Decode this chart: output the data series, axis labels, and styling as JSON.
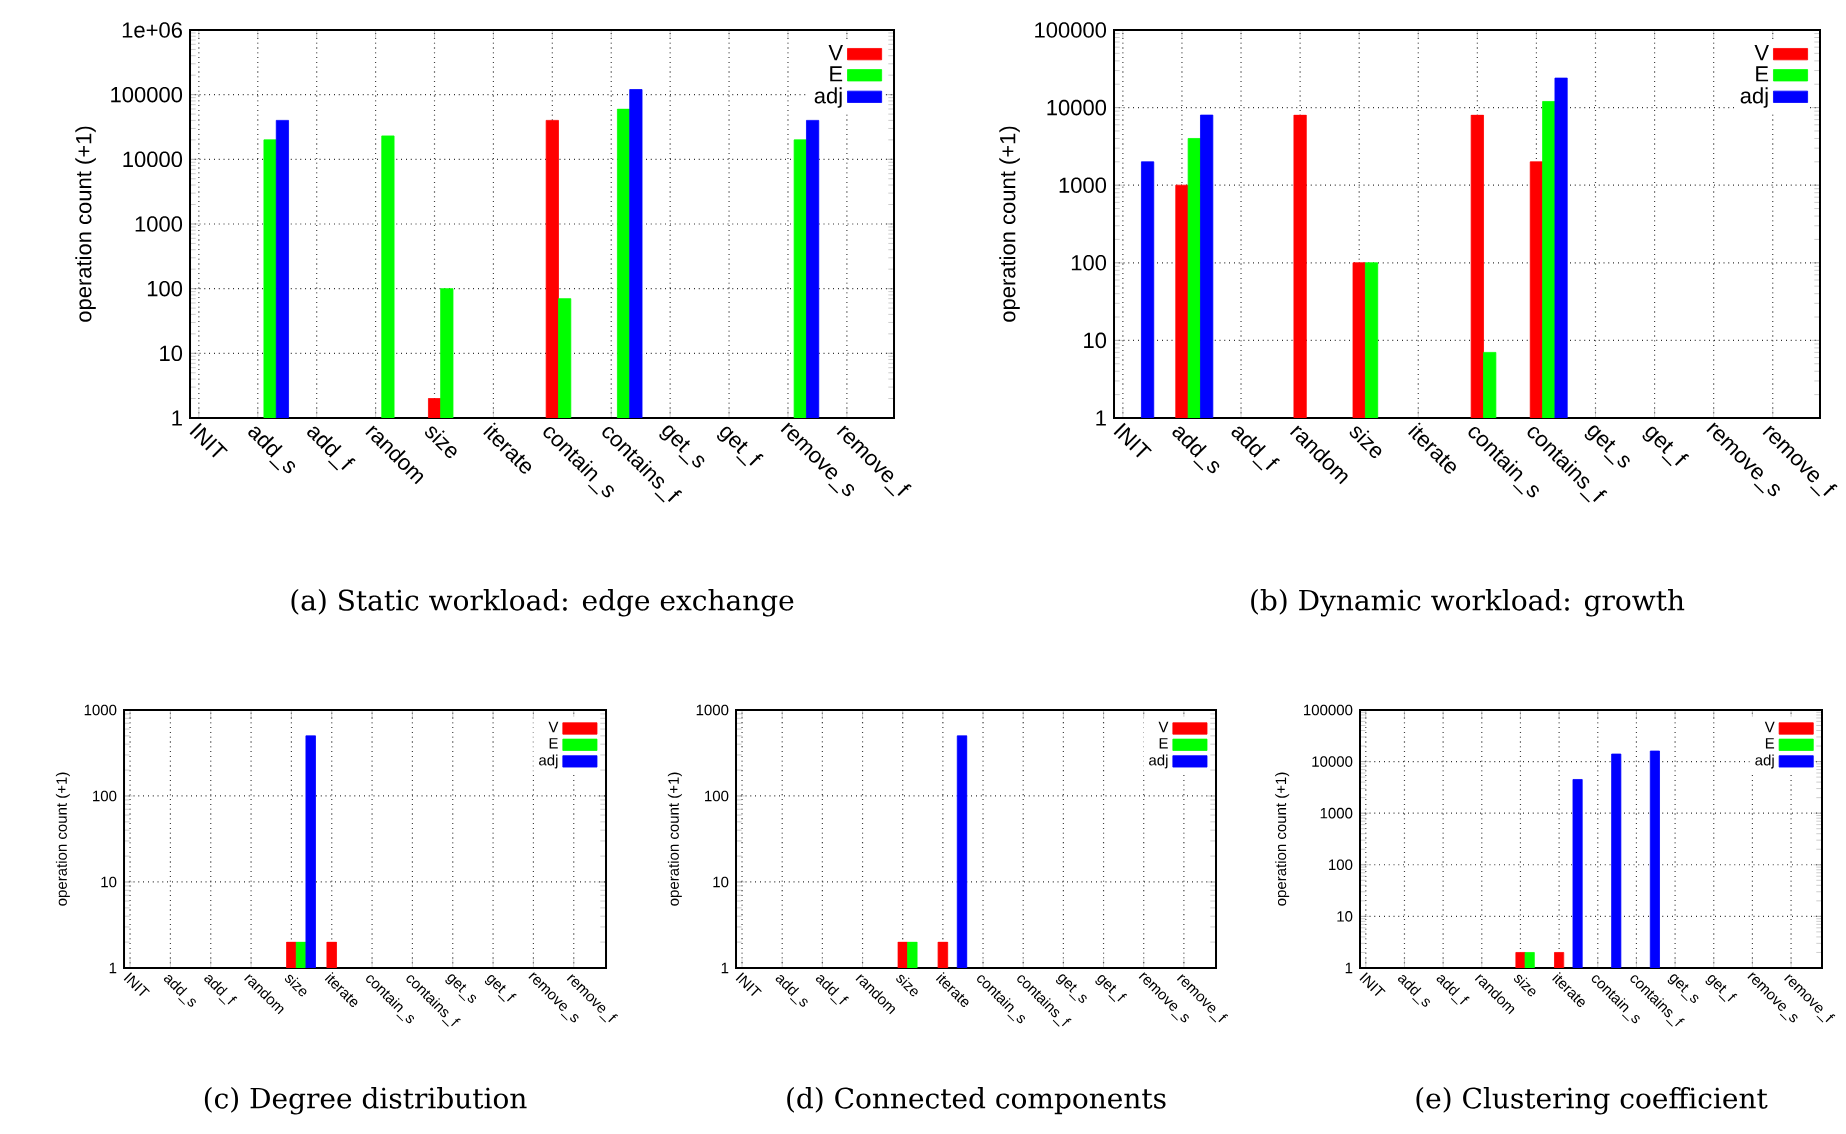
{
  "chart_data": [
    {
      "type": "bar",
      "title": "(a) Static workload: edge exchange",
      "ylabel": "operation count (+1)",
      "categories": [
        "INIT",
        "add_s",
        "add_f",
        "random",
        "size",
        "iterate",
        "contain_s",
        "contains_f",
        "get_s",
        "get_f",
        "remove_s",
        "remove_f"
      ],
      "series": [
        {
          "name": "V",
          "color": "#ff0000",
          "values": [
            null,
            null,
            null,
            null,
            2,
            null,
            40000,
            null,
            null,
            null,
            null,
            null
          ]
        },
        {
          "name": "E",
          "color": "#00ff00",
          "values": [
            null,
            20000,
            null,
            23000,
            100,
            null,
            70,
            60000,
            null,
            null,
            20000,
            null
          ]
        },
        {
          "name": "adj",
          "color": "#0000ff",
          "values": [
            null,
            40000,
            null,
            null,
            null,
            null,
            null,
            120000,
            null,
            null,
            40000,
            null
          ]
        }
      ],
      "ylim": [
        1,
        1000000
      ],
      "yticks": [
        1,
        10,
        100,
        1000,
        10000,
        100000,
        {
          "value": 1000000,
          "label": "1e+06"
        }
      ],
      "log": "y",
      "grid": true,
      "legend": "top right"
    },
    {
      "type": "bar",
      "title": "(b) Dynamic workload: growth",
      "ylabel": "operation count (+1)",
      "categories": [
        "INIT",
        "add_s",
        "add_f",
        "random",
        "size",
        "iterate",
        "contain_s",
        "contains_f",
        "get_s",
        "get_f",
        "remove_s",
        "remove_f"
      ],
      "series": [
        {
          "name": "V",
          "color": "#ff0000",
          "values": [
            null,
            1000,
            null,
            8000,
            100,
            null,
            8000,
            2000,
            null,
            null,
            null,
            null
          ]
        },
        {
          "name": "E",
          "color": "#00ff00",
          "values": [
            null,
            4000,
            null,
            null,
            100,
            null,
            7,
            12000,
            null,
            null,
            null,
            null
          ]
        },
        {
          "name": "adj",
          "color": "#0000ff",
          "values": [
            2000,
            8000,
            null,
            null,
            null,
            null,
            null,
            24000,
            null,
            null,
            null,
            null
          ]
        }
      ],
      "ylim": [
        1,
        100000
      ],
      "yticks": [
        1,
        10,
        100,
        1000,
        10000,
        100000
      ],
      "log": "y",
      "grid": true,
      "legend": "top right"
    },
    {
      "type": "bar",
      "title": "(c) Degree distribution",
      "ylabel": "operation count (+1)",
      "categories": [
        "INIT",
        "add_s",
        "add_f",
        "random",
        "size",
        "iterate",
        "contain_s",
        "contains_f",
        "get_s",
        "get_f",
        "remove_s",
        "remove_f"
      ],
      "series": [
        {
          "name": "V",
          "color": "#ff0000",
          "values": [
            null,
            null,
            null,
            null,
            2,
            2,
            null,
            null,
            null,
            null,
            null,
            null
          ]
        },
        {
          "name": "E",
          "color": "#00ff00",
          "values": [
            null,
            null,
            null,
            null,
            2,
            null,
            null,
            null,
            null,
            null,
            null,
            null
          ]
        },
        {
          "name": "adj",
          "color": "#0000ff",
          "values": [
            null,
            null,
            null,
            null,
            500,
            null,
            null,
            null,
            null,
            null,
            null,
            null
          ]
        }
      ],
      "ylim": [
        1,
        1000
      ],
      "yticks": [
        1,
        10,
        100,
        1000
      ],
      "log": "y",
      "grid": true,
      "legend": "top right"
    },
    {
      "type": "bar",
      "title": "(d) Connected components",
      "ylabel": "operation count (+1)",
      "categories": [
        "INIT",
        "add_s",
        "add_f",
        "random",
        "size",
        "iterate",
        "contain_s",
        "contains_f",
        "get_s",
        "get_f",
        "remove_s",
        "remove_f"
      ],
      "series": [
        {
          "name": "V",
          "color": "#ff0000",
          "values": [
            null,
            null,
            null,
            null,
            2,
            2,
            null,
            null,
            null,
            null,
            null,
            null
          ]
        },
        {
          "name": "E",
          "color": "#00ff00",
          "values": [
            null,
            null,
            null,
            null,
            2,
            null,
            null,
            null,
            null,
            null,
            null,
            null
          ]
        },
        {
          "name": "adj",
          "color": "#0000ff",
          "values": [
            null,
            null,
            null,
            null,
            null,
            500,
            null,
            null,
            null,
            null,
            null,
            null
          ]
        }
      ],
      "ylim": [
        1,
        1000
      ],
      "yticks": [
        1,
        10,
        100,
        1000
      ],
      "log": "y",
      "grid": true,
      "legend": "top right"
    },
    {
      "type": "bar",
      "title": "(e) Clustering coefficient",
      "ylabel": "operation count (+1)",
      "categories": [
        "INIT",
        "add_s",
        "add_f",
        "random",
        "size",
        "iterate",
        "contain_s",
        "contains_f",
        "get_s",
        "get_f",
        "remove_s",
        "remove_f"
      ],
      "series": [
        {
          "name": "V",
          "color": "#ff0000",
          "values": [
            null,
            null,
            null,
            null,
            2,
            2,
            null,
            null,
            null,
            null,
            null,
            null
          ]
        },
        {
          "name": "E",
          "color": "#00ff00",
          "values": [
            null,
            null,
            null,
            null,
            2,
            null,
            null,
            null,
            null,
            null,
            null,
            null
          ]
        },
        {
          "name": "adj",
          "color": "#0000ff",
          "values": [
            null,
            null,
            null,
            null,
            null,
            4500,
            14000,
            16000,
            null,
            null,
            null,
            null
          ]
        }
      ],
      "ylim": [
        1,
        100000
      ],
      "yticks": [
        1,
        10,
        100,
        1000,
        10000,
        100000
      ],
      "log": "y",
      "grid": true,
      "legend": "top right"
    }
  ]
}
